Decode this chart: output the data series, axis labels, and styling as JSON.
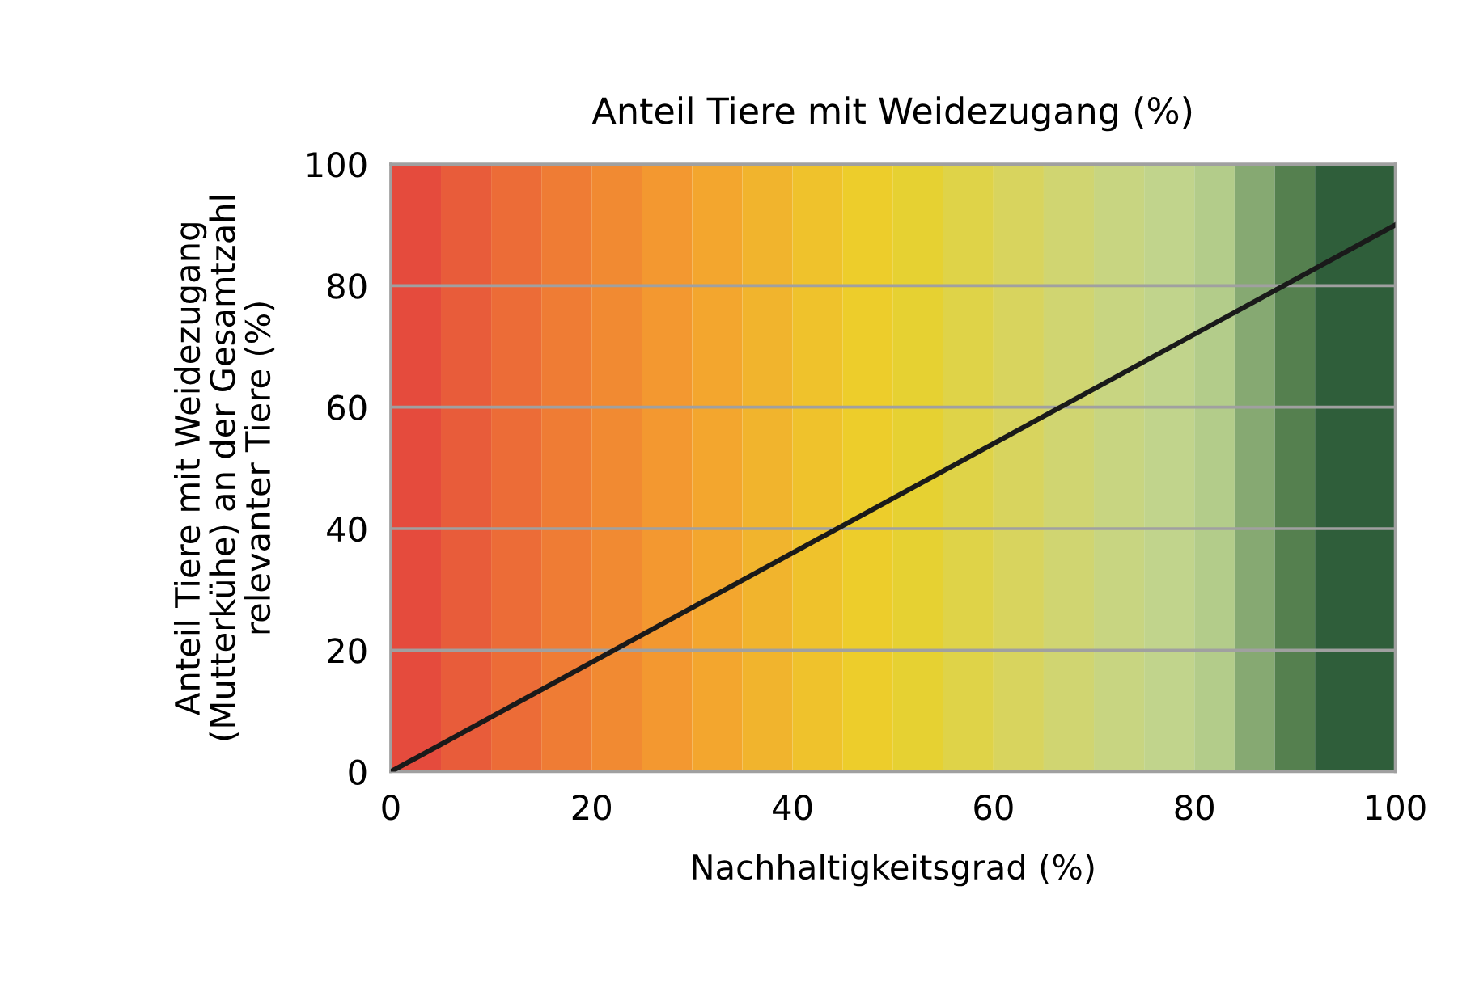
{
  "chart_data": {
    "type": "line",
    "title": "Anteil Tiere mit Weidezugang (%)",
    "xlabel": "Nachhaltigkeitsgrad (%)",
    "ylabel": "Anteil Tiere mit Weidezugang\n(Mutterkühe) an der Gesamtzahl\nrelevanter Tiere (%)",
    "x": [
      0,
      100
    ],
    "series": [
      {
        "color": "#1a1a1a",
        "values": [
          0,
          90
        ]
      }
    ],
    "xlim": [
      0,
      100
    ],
    "xticks": [
      0,
      20,
      40,
      60,
      80,
      100
    ],
    "ylim": [
      0,
      100
    ],
    "yticks": [
      0,
      20,
      40,
      60,
      80,
      100
    ],
    "grid": "y",
    "marker": "none",
    "line_style": "solid",
    "bands": [
      {
        "axis": "x",
        "from": 0,
        "to": 5,
        "color": "#e54b3d"
      },
      {
        "axis": "x",
        "from": 5,
        "to": 10,
        "color": "#e85c3a"
      },
      {
        "axis": "x",
        "from": 10,
        "to": 15,
        "color": "#ec6c37"
      },
      {
        "axis": "x",
        "from": 15,
        "to": 20,
        "color": "#ef7c34"
      },
      {
        "axis": "x",
        "from": 20,
        "to": 25,
        "color": "#f18a32"
      },
      {
        "axis": "x",
        "from": 25,
        "to": 30,
        "color": "#f39830"
      },
      {
        "axis": "x",
        "from": 30,
        "to": 35,
        "color": "#f3a62e"
      },
      {
        "axis": "x",
        "from": 35,
        "to": 40,
        "color": "#f1b42d"
      },
      {
        "axis": "x",
        "from": 40,
        "to": 45,
        "color": "#efc22c"
      },
      {
        "axis": "x",
        "from": 45,
        "to": 50,
        "color": "#edcd2b"
      },
      {
        "axis": "x",
        "from": 50,
        "to": 55,
        "color": "#e6d132"
      },
      {
        "axis": "x",
        "from": 55,
        "to": 60,
        "color": "#dfd348"
      },
      {
        "axis": "x",
        "from": 60,
        "to": 65,
        "color": "#d8d45e"
      },
      {
        "axis": "x",
        "from": 65,
        "to": 70,
        "color": "#d0d571"
      },
      {
        "axis": "x",
        "from": 70,
        "to": 75,
        "color": "#c8d581"
      },
      {
        "axis": "x",
        "from": 75,
        "to": 80,
        "color": "#c1d48c"
      },
      {
        "axis": "x",
        "from": 80,
        "to": 84,
        "color": "#b3cc8a"
      },
      {
        "axis": "x",
        "from": 84,
        "to": 88,
        "color": "#86a972"
      },
      {
        "axis": "x",
        "from": 88,
        "to": 92,
        "color": "#55804f"
      },
      {
        "axis": "x",
        "from": 92,
        "to": 100,
        "color": "#2f5e3a"
      }
    ]
  }
}
